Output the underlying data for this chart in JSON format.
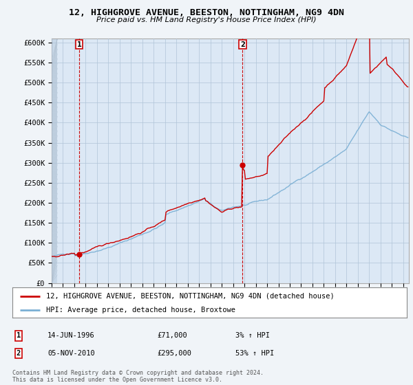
{
  "title": "12, HIGHGROVE AVENUE, BEESTON, NOTTINGHAM, NG9 4DN",
  "subtitle": "Price paid vs. HM Land Registry's House Price Index (HPI)",
  "legend_label_red": "12, HIGHGROVE AVENUE, BEESTON, NOTTINGHAM, NG9 4DN (detached house)",
  "legend_label_blue": "HPI: Average price, detached house, Broxtowe",
  "annotation1_label": "1",
  "annotation1_date": "14-JUN-1996",
  "annotation1_price": "£71,000",
  "annotation1_hpi": "3% ↑ HPI",
  "annotation2_label": "2",
  "annotation2_date": "05-NOV-2010",
  "annotation2_price": "£295,000",
  "annotation2_hpi": "53% ↑ HPI",
  "footnote": "Contains HM Land Registry data © Crown copyright and database right 2024.\nThis data is licensed under the Open Government Licence v3.0.",
  "ylim": [
    0,
    610000
  ],
  "yticks": [
    0,
    50000,
    100000,
    150000,
    200000,
    250000,
    300000,
    350000,
    400000,
    450000,
    500000,
    550000,
    600000
  ],
  "background_color": "#f0f4f8",
  "plot_bg_color": "#dce8f5",
  "plot_bg_right_color": "#eef4fb",
  "grid_color": "#b0c4d8",
  "red_color": "#cc0000",
  "blue_color": "#7aafd4",
  "sale1_x": 1996.45,
  "sale1_y": 71000,
  "sale2_x": 2010.84,
  "sale2_y": 295000,
  "xmin": 1994.0,
  "xmax": 2025.5
}
